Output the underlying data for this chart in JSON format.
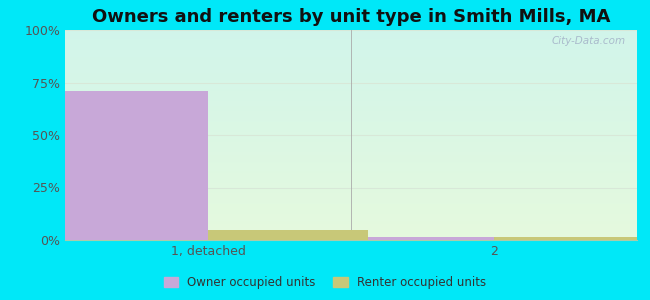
{
  "title": "Owners and renters by unit type in Smith Mills, MA",
  "categories": [
    "1, detached",
    "2"
  ],
  "owner_values": [
    71,
    1.5
  ],
  "renter_values": [
    5,
    1.5
  ],
  "owner_color": "#c8a8d8",
  "renter_color": "#c8c878",
  "bar_width": 0.28,
  "ylim": [
    0,
    100
  ],
  "yticks": [
    0,
    25,
    50,
    75,
    100
  ],
  "ytick_labels": [
    "0%",
    "25%",
    "50%",
    "75%",
    "100%"
  ],
  "bg_top_left": "#d0f0e8",
  "bg_top_right": "#e8f8f0",
  "bg_bottom": "#e8f8e0",
  "outer_bg": "#00e8f8",
  "title_fontsize": 13,
  "legend_label_owner": "Owner occupied units",
  "legend_label_renter": "Renter occupied units",
  "watermark": "City-Data.com",
  "grid_color": "#e0ece0",
  "x_positions": [
    0.25,
    0.75
  ],
  "xlim": [
    0,
    1
  ]
}
